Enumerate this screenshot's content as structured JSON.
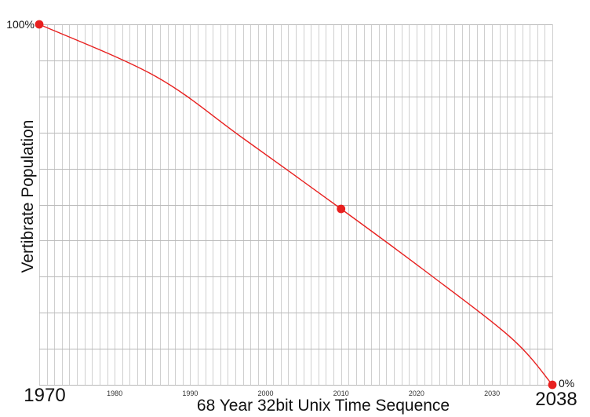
{
  "chart_data": {
    "type": "line",
    "title": "",
    "xlabel": "68 Year 32bit Unix Time Sequence",
    "ylabel": "Vertibrate Population",
    "x_range": [
      1970,
      2038
    ],
    "ylim_pct": [
      0,
      100
    ],
    "start_value_label": "100%",
    "end_value_label": "0%",
    "start_year_label": "1970",
    "end_year_label": "2038",
    "x_ticks": [
      "1980",
      "1990",
      "2000",
      "2010",
      "2020",
      "2030"
    ],
    "x_tick_years": [
      1980,
      1990,
      2000,
      2010,
      2020,
      2030
    ],
    "grid": {
      "x_step_years": 1,
      "y_step_pct": 10,
      "vertical_color": "#cfcfcf",
      "horizontal_color": "#b9b9b9"
    },
    "line_color": "#e8201f",
    "curve_points": {
      "year": [
        1970,
        1985.4,
        1997.0,
        2010.0,
        2021.0,
        2032.6,
        2038
      ],
      "pct": [
        100,
        85.6,
        68.4,
        48.8,
        31.8,
        12.9,
        0
      ]
    },
    "markers": [
      {
        "year": 1970,
        "pct": 100,
        "label": "100%"
      },
      {
        "year": 2010,
        "pct": 48.8,
        "label": ""
      },
      {
        "year": 2038,
        "pct": 0,
        "label": "0%"
      }
    ]
  }
}
